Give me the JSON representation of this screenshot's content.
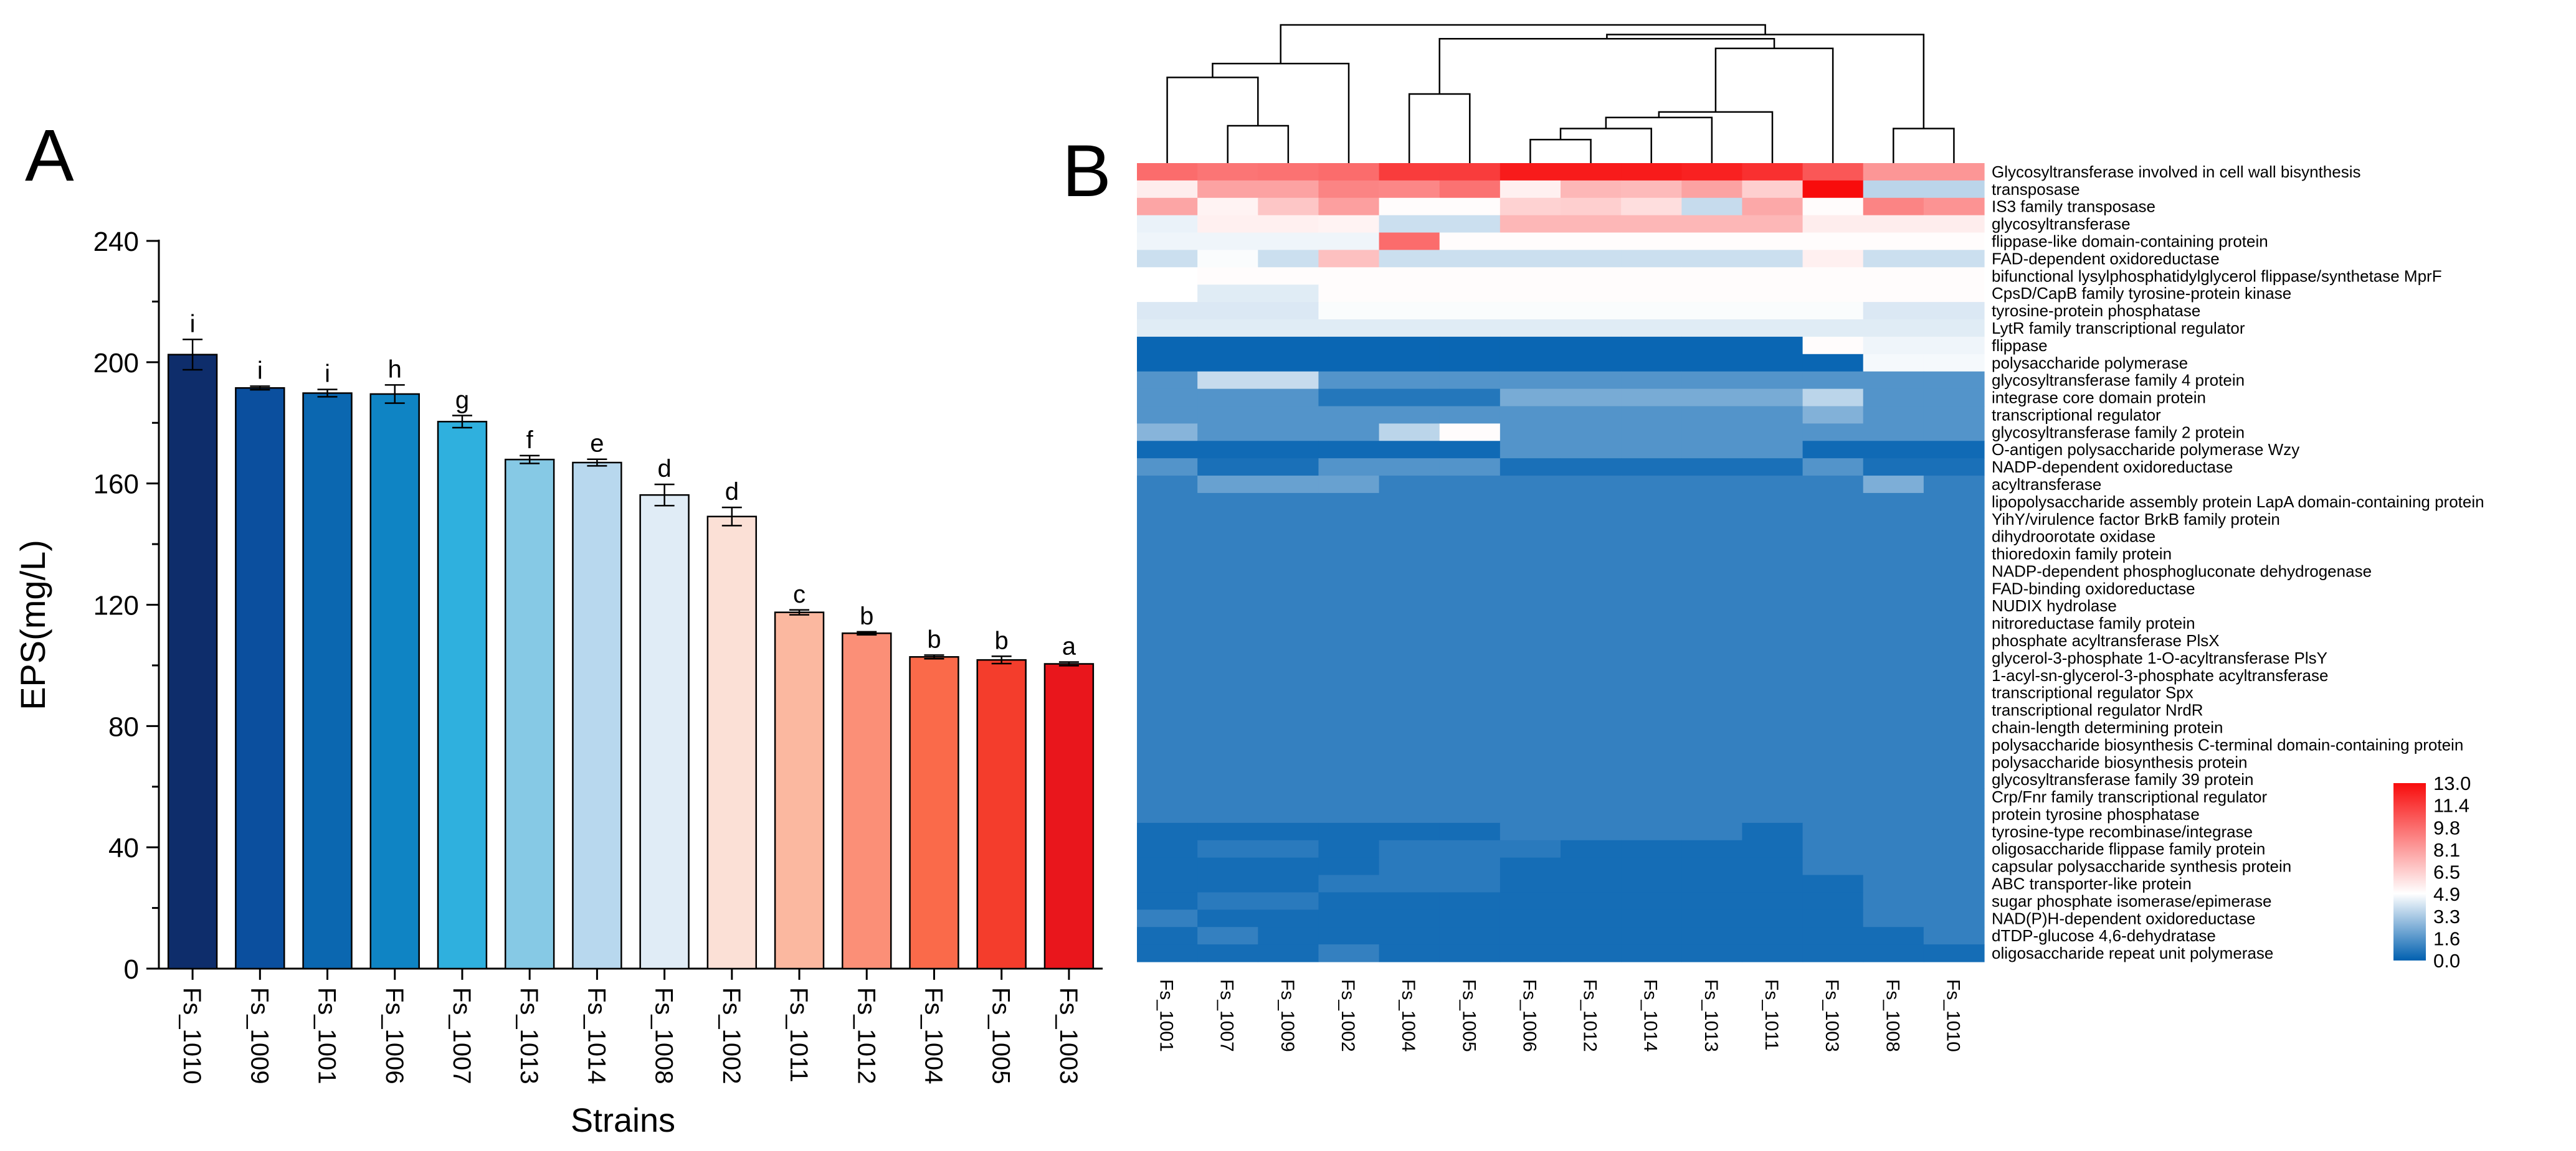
{
  "panels": {
    "a_label": "A",
    "b_label": "B"
  },
  "chart_data": [
    {
      "type": "bar",
      "title": "",
      "xlabel": "Strains",
      "ylabel": "EPS(mg/L)",
      "ylim": [
        0,
        240
      ],
      "yticks": [
        0,
        40,
        80,
        120,
        160,
        200,
        240
      ],
      "categories": [
        "Fs_1010",
        "Fs_1009",
        "Fs_1001",
        "Fs_1006",
        "Fs_1007",
        "Fs_1013",
        "Fs_1014",
        "Fs_1008",
        "Fs_1002",
        "Fs_1011",
        "Fs_1012",
        "Fs_1004",
        "Fs_1005",
        "Fs_1003"
      ],
      "values": [
        202.5,
        191.5,
        189.8,
        189.5,
        180.4,
        167.9,
        166.9,
        156.2,
        149.1,
        117.5,
        110.6,
        102.8,
        101.8,
        100.5
      ],
      "errors": [
        5.0,
        0.6,
        1.2,
        3.0,
        2.0,
        1.3,
        1.1,
        3.5,
        3.0,
        0.8,
        0.5,
        0.6,
        1.2,
        0.6
      ],
      "significance_letters": [
        "i",
        "i",
        "i",
        "h",
        "g",
        "f",
        "e",
        "d",
        "d",
        "c",
        "b",
        "b",
        "b",
        "a"
      ],
      "colors": [
        "#0e2d6b",
        "#0b4f9e",
        "#0b67b0",
        "#0f84c4",
        "#2fb0de",
        "#86c9e5",
        "#b8d8ee",
        "#e0ecf6",
        "#fbe0d6",
        "#fbb8a0",
        "#fb8f77",
        "#fa6a4a",
        "#f43d2c",
        "#e9161c"
      ]
    },
    {
      "type": "heatmap",
      "columns": [
        "Fs_1001",
        "Fs_1007",
        "Fs_1009",
        "Fs_1002",
        "Fs_1004",
        "Fs_1005",
        "Fs_1006",
        "Fs_1012",
        "Fs_1014",
        "Fs_1013",
        "Fs_1011",
        "Fs_1003",
        "Fs_1008",
        "Fs_1010"
      ],
      "rows": [
        "Glycosyltransferase involved in cell wall bisynthesis",
        "transposase",
        "IS3 family transposase",
        "glycosyltransferase",
        "flippase-like domain-containing protein",
        "FAD-dependent oxidoreductase",
        "bifunctional lysylphosphatidylglycerol flippase/synthetase MprF",
        "CpsD/CapB family tyrosine-protein kinase",
        "tyrosine-protein phosphatase",
        "LytR family transcriptional regulator",
        "flippase",
        "polysaccharide polymerase",
        "glycosyltransferase family 4 protein",
        "integrase core domain protein",
        "transcriptional regulator",
        "glycosyltransferase family 2 protein",
        "O-antigen polysaccharide polymerase Wzy",
        "NADP-dependent oxidoreductase",
        "acyltransferase",
        "lipopolysaccharide assembly protein LapA domain-containing protein",
        "YihY/virulence factor BrkB family protein",
        "dihydroorotate oxidase",
        "thioredoxin family protein",
        "NADP-dependent phosphogluconate dehydrogenase",
        "FAD-binding oxidoreductase",
        "NUDIX hydrolase",
        "nitroreductase family protein",
        "phosphate acyltransferase PlsX",
        "glycerol-3-phosphate 1-O-acyltransferase PlsY",
        "1-acyl-sn-glycerol-3-phosphate acyltransferase",
        "transcriptional regulator Spx",
        "transcriptional regulator NrdR",
        "chain-length determining protein",
        "polysaccharide biosynthesis C-terminal domain-containing protein",
        "polysaccharide biosynthesis protein",
        "glycosyltransferase family 39 protein",
        "Crp/Fnr family transcriptional regulator",
        "protein tyrosine phosphatase",
        "tyrosine-type recombinase/integrase",
        "oligosaccharide flippase family protein",
        "capsular polysaccharide synthesis protein",
        "ABC transporter-like protein",
        "sugar phosphate isomerase/epimerase",
        "NAD(P)H-dependent oxidoreductase",
        "dTDP-glucose 4,6-dehydratase",
        "oligosaccharide repeat unit polymerase"
      ],
      "values": [
        [
          9.8,
          9.5,
          9.6,
          9.8,
          11.4,
          11.4,
          12.5,
          12.5,
          12.5,
          12.3,
          11.8,
          10.5,
          8.4,
          8.4
        ],
        [
          5.5,
          8.0,
          8.0,
          9.0,
          8.9,
          9.6,
          5.4,
          7.3,
          7.2,
          8.0,
          6.5,
          13.0,
          3.6,
          3.6
        ],
        [
          7.9,
          5.3,
          6.8,
          8.1,
          5.0,
          5.0,
          6.4,
          6.5,
          6.0,
          3.8,
          7.8,
          5.0,
          9.0,
          8.5
        ],
        [
          4.5,
          5.4,
          5.4,
          5.3,
          3.9,
          3.9,
          7.3,
          7.3,
          7.3,
          7.3,
          7.3,
          5.5,
          5.5,
          5.5
        ],
        [
          4.6,
          4.6,
          4.6,
          4.6,
          9.8,
          5.0,
          5.0,
          5.0,
          5.0,
          5.0,
          5.0,
          5.0,
          5.0,
          5.0
        ],
        [
          3.9,
          4.8,
          3.9,
          7.0,
          3.9,
          3.9,
          3.9,
          3.9,
          3.9,
          3.9,
          3.9,
          5.4,
          3.9,
          3.9
        ],
        [
          4.9,
          5.0,
          5.0,
          5.0,
          5.0,
          5.0,
          5.0,
          5.0,
          5.0,
          5.0,
          5.0,
          5.0,
          5.0,
          5.0
        ],
        [
          4.9,
          4.3,
          4.3,
          5.0,
          5.0,
          5.0,
          5.0,
          5.0,
          5.0,
          5.0,
          5.0,
          5.0,
          5.0,
          5.0
        ],
        [
          4.2,
          4.2,
          4.2,
          4.8,
          4.8,
          4.8,
          4.8,
          4.8,
          4.8,
          4.8,
          4.8,
          4.8,
          4.2,
          4.2
        ],
        [
          4.3,
          4.3,
          4.3,
          4.3,
          4.3,
          4.3,
          4.3,
          4.3,
          4.3,
          4.3,
          4.3,
          4.3,
          4.3,
          4.3
        ],
        [
          0.2,
          0.2,
          0.2,
          0.2,
          0.2,
          0.2,
          0.2,
          0.2,
          0.2,
          0.2,
          0.2,
          5.0,
          4.6,
          4.6
        ],
        [
          0.2,
          0.2,
          0.2,
          0.2,
          0.2,
          0.2,
          0.2,
          0.2,
          0.2,
          0.2,
          0.2,
          0.2,
          4.7,
          4.7
        ],
        [
          1.6,
          3.8,
          3.8,
          1.6,
          1.6,
          1.6,
          1.6,
          1.6,
          1.6,
          1.6,
          1.6,
          1.6,
          1.6,
          1.6
        ],
        [
          1.6,
          1.6,
          1.6,
          0.7,
          0.7,
          0.7,
          2.3,
          2.3,
          2.3,
          2.3,
          2.3,
          3.6,
          1.6,
          1.6
        ],
        [
          1.6,
          1.6,
          1.6,
          1.6,
          1.6,
          1.6,
          1.6,
          1.6,
          1.6,
          1.6,
          1.6,
          2.5,
          1.6,
          1.6
        ],
        [
          2.6,
          1.6,
          1.6,
          1.6,
          3.6,
          5.0,
          1.6,
          1.6,
          1.6,
          1.6,
          1.6,
          1.6,
          1.6,
          1.6
        ],
        [
          0.3,
          0.3,
          0.3,
          0.3,
          0.3,
          0.3,
          1.6,
          1.6,
          1.6,
          1.6,
          1.6,
          0.3,
          0.3,
          0.3
        ],
        [
          1.6,
          0.5,
          0.5,
          1.6,
          1.6,
          1.6,
          0.5,
          0.5,
          0.5,
          0.5,
          0.5,
          1.6,
          0.5,
          0.5
        ],
        [
          1.0,
          2.0,
          2.0,
          2.0,
          1.0,
          1.0,
          1.0,
          1.0,
          1.0,
          1.0,
          1.0,
          1.0,
          2.4,
          1.0
        ],
        [
          1.0,
          1.0,
          1.0,
          1.0,
          1.0,
          1.0,
          1.0,
          1.0,
          1.0,
          1.0,
          1.0,
          1.0,
          1.0,
          1.0
        ],
        [
          1.0,
          1.0,
          1.0,
          1.0,
          1.0,
          1.0,
          1.0,
          1.0,
          1.0,
          1.0,
          1.0,
          1.0,
          1.0,
          1.0
        ],
        [
          1.0,
          1.0,
          1.0,
          1.0,
          1.0,
          1.0,
          1.0,
          1.0,
          1.0,
          1.0,
          1.0,
          1.0,
          1.0,
          1.0
        ],
        [
          1.0,
          1.0,
          1.0,
          1.0,
          1.0,
          1.0,
          1.0,
          1.0,
          1.0,
          1.0,
          1.0,
          1.0,
          1.0,
          1.0
        ],
        [
          1.0,
          1.0,
          1.0,
          1.0,
          1.0,
          1.0,
          1.0,
          1.0,
          1.0,
          1.0,
          1.0,
          1.0,
          1.0,
          1.0
        ],
        [
          1.0,
          1.0,
          1.0,
          1.0,
          1.0,
          1.0,
          1.0,
          1.0,
          1.0,
          1.0,
          1.0,
          1.0,
          1.0,
          1.0
        ],
        [
          1.0,
          1.0,
          1.0,
          1.0,
          1.0,
          1.0,
          1.0,
          1.0,
          1.0,
          1.0,
          1.0,
          1.0,
          1.0,
          1.0
        ],
        [
          1.0,
          1.0,
          1.0,
          1.0,
          1.0,
          1.0,
          1.0,
          1.0,
          1.0,
          1.0,
          1.0,
          1.0,
          1.0,
          1.0
        ],
        [
          1.0,
          1.0,
          1.0,
          1.0,
          1.0,
          1.0,
          1.0,
          1.0,
          1.0,
          1.0,
          1.0,
          1.0,
          1.0,
          1.0
        ],
        [
          1.0,
          1.0,
          1.0,
          1.0,
          1.0,
          1.0,
          1.0,
          1.0,
          1.0,
          1.0,
          1.0,
          1.0,
          1.0,
          1.0
        ],
        [
          1.0,
          1.0,
          1.0,
          1.0,
          1.0,
          1.0,
          1.0,
          1.0,
          1.0,
          1.0,
          1.0,
          1.0,
          1.0,
          1.0
        ],
        [
          1.0,
          1.0,
          1.0,
          1.0,
          1.0,
          1.0,
          1.0,
          1.0,
          1.0,
          1.0,
          1.0,
          1.0,
          1.0,
          1.0
        ],
        [
          1.0,
          1.0,
          1.0,
          1.0,
          1.0,
          1.0,
          1.0,
          1.0,
          1.0,
          1.0,
          1.0,
          1.0,
          1.0,
          1.0
        ],
        [
          1.0,
          1.0,
          1.0,
          1.0,
          1.0,
          1.0,
          1.0,
          1.0,
          1.0,
          1.0,
          1.0,
          1.0,
          1.0,
          1.0
        ],
        [
          1.0,
          1.0,
          1.0,
          1.0,
          1.0,
          1.0,
          1.0,
          1.0,
          1.0,
          1.0,
          1.0,
          1.0,
          1.0,
          1.0
        ],
        [
          1.0,
          1.0,
          1.0,
          1.0,
          1.0,
          1.0,
          1.0,
          1.0,
          1.0,
          1.0,
          1.0,
          1.0,
          1.0,
          1.0
        ],
        [
          1.0,
          1.0,
          1.0,
          1.0,
          1.0,
          1.0,
          1.0,
          1.0,
          1.0,
          1.0,
          1.0,
          1.0,
          1.0,
          1.0
        ],
        [
          1.0,
          1.0,
          1.0,
          1.0,
          1.0,
          1.0,
          1.0,
          1.0,
          1.0,
          1.0,
          1.0,
          1.0,
          1.0,
          1.0
        ],
        [
          1.0,
          1.0,
          1.0,
          1.0,
          1.0,
          1.0,
          1.0,
          1.0,
          1.0,
          1.0,
          1.0,
          1.0,
          1.0,
          1.0
        ],
        [
          0.4,
          0.4,
          0.4,
          0.4,
          0.4,
          0.4,
          1.0,
          1.0,
          1.0,
          1.0,
          0.4,
          1.0,
          1.0,
          1.0
        ],
        [
          0.4,
          0.8,
          0.8,
          0.4,
          0.8,
          0.8,
          0.8,
          0.4,
          0.4,
          0.4,
          0.4,
          1.0,
          1.0,
          1.0
        ],
        [
          0.4,
          0.4,
          0.4,
          0.4,
          0.8,
          0.8,
          0.4,
          0.4,
          0.4,
          0.4,
          0.4,
          1.0,
          1.0,
          1.0
        ],
        [
          0.4,
          0.4,
          0.4,
          0.8,
          0.8,
          0.8,
          0.4,
          0.4,
          0.4,
          0.4,
          0.4,
          0.4,
          1.0,
          1.0
        ],
        [
          0.4,
          0.8,
          0.8,
          0.4,
          0.4,
          0.4,
          0.4,
          0.4,
          0.4,
          0.4,
          0.4,
          0.4,
          1.0,
          1.0
        ],
        [
          1.0,
          0.4,
          0.4,
          0.4,
          0.4,
          0.4,
          0.4,
          0.4,
          0.4,
          0.4,
          0.4,
          0.4,
          1.0,
          1.0
        ],
        [
          0.4,
          1.0,
          0.4,
          0.4,
          0.4,
          0.4,
          0.4,
          0.4,
          0.4,
          0.4,
          0.4,
          0.4,
          0.4,
          1.0
        ],
        [
          0.4,
          0.4,
          0.4,
          1.0,
          0.4,
          0.4,
          0.4,
          0.4,
          0.4,
          0.4,
          0.4,
          0.4,
          0.4,
          0.4
        ]
      ],
      "colorbar": {
        "ticks": [
          "13.0",
          "11.4",
          "9.8",
          "8.1",
          "6.5",
          "4.9",
          "3.3",
          "1.6",
          "0.0"
        ],
        "range": [
          0,
          13
        ],
        "colors": {
          "low": "#0060b0",
          "mid": "#ffffff",
          "high": "#f80c0c"
        }
      },
      "dendrogram": {
        "merges": [
          [
            1,
            2,
            0.27
          ],
          [
            6,
            7,
            0.17
          ],
          [
            8,
            15,
            0.25
          ],
          [
            9,
            16,
            0.33
          ],
          [
            10,
            17,
            0.37
          ],
          [
            12,
            13,
            0.25
          ],
          [
            4,
            5,
            0.5
          ],
          [
            0,
            14,
            0.62
          ],
          [
            3,
            21,
            0.72
          ],
          [
            11,
            18,
            0.83
          ],
          [
            20,
            23,
            0.9
          ],
          [
            19,
            24,
            0.93
          ],
          [
            22,
            25,
            1.0
          ]
        ]
      }
    }
  ]
}
